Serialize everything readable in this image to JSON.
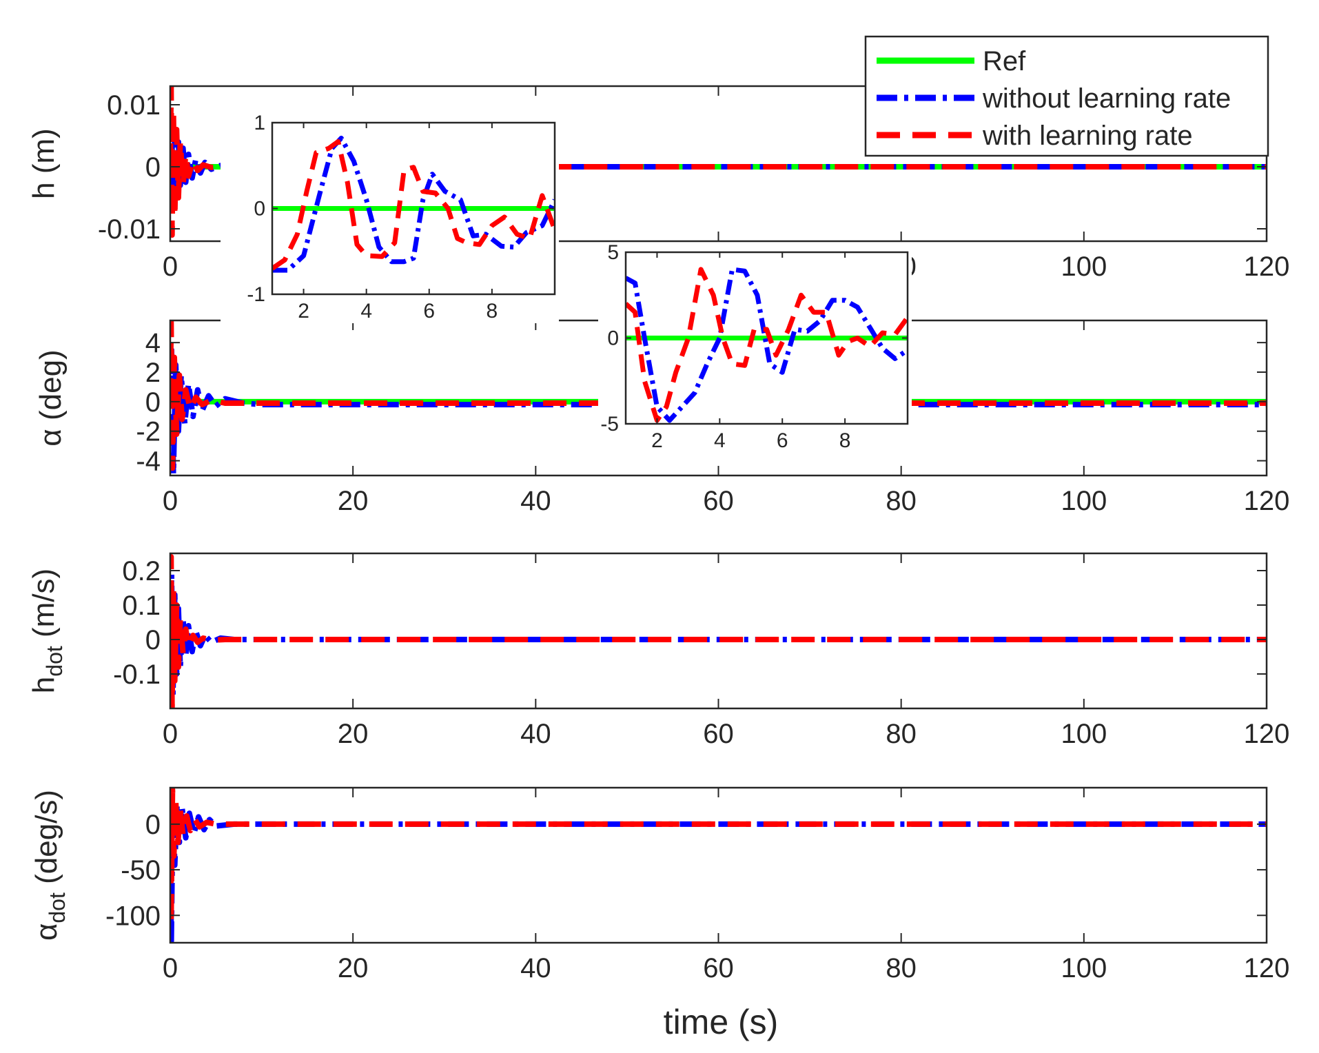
{
  "figure": {
    "xlabel": "time (s)",
    "legend_position": "top-right",
    "legend": [
      {
        "label": "Ref",
        "color": "#00ff00",
        "style": "solid"
      },
      {
        "label": "without learning rate",
        "color": "#0000ff",
        "style": "dashdot"
      },
      {
        "label": "with learning rate",
        "color": "#ff0000",
        "style": "dashed"
      }
    ]
  },
  "chart_data": [
    {
      "type": "line",
      "ylabel": "h (m)",
      "xlim": [
        0,
        120
      ],
      "ylim": [
        -0.012,
        0.013
      ],
      "xticks": [
        0,
        20,
        40,
        60,
        80,
        100,
        120
      ],
      "yticks": [
        -0.01,
        0,
        0.01
      ],
      "ytick_labels": [
        "-0.01",
        "0",
        "0.01"
      ],
      "series": [
        {
          "name": "Ref",
          "color": "#00ff00",
          "style": "solid",
          "x": [
            0,
            120
          ],
          "y": [
            0,
            0
          ]
        },
        {
          "name": "without learning rate",
          "color": "#0000ff",
          "style": "dashdot",
          "x": [
            0,
            0.15,
            0.3,
            0.5,
            0.7,
            0.9,
            1.1,
            1.4,
            1.7,
            2.0,
            2.4,
            2.8,
            3.3,
            3.8,
            4.5,
            5.5,
            7,
            10,
            120
          ],
          "y": [
            0,
            0.008,
            -0.006,
            0.005,
            -0.004,
            0.004,
            -0.003,
            0.003,
            -0.0025,
            0.002,
            -0.0018,
            0.0012,
            -0.001,
            0.0007,
            -0.0004,
            0.0002,
            -0.0001,
            0,
            0
          ]
        },
        {
          "name": "with learning rate",
          "color": "#ff0000",
          "style": "dashed",
          "x": [
            0,
            0.1,
            0.2,
            0.35,
            0.5,
            0.7,
            0.9,
            1.1,
            1.4,
            1.7,
            2.0,
            2.5,
            3.0,
            3.6,
            4.5,
            6,
            120
          ],
          "y": [
            0,
            0.013,
            -0.011,
            0.009,
            -0.008,
            0.006,
            -0.005,
            0.004,
            -0.003,
            0.002,
            -0.0015,
            0.001,
            -0.0006,
            0.0003,
            -0.0001,
            0,
            0
          ]
        }
      ],
      "inset": {
        "xlim": [
          1,
          10
        ],
        "ylim": [
          -1,
          1
        ],
        "xticks": [
          2,
          4,
          6,
          8
        ],
        "yticks": [
          -1,
          0,
          1
        ],
        "series": [
          {
            "name": "Ref",
            "color": "#00ff00",
            "style": "solid",
            "x": [
              1,
              10
            ],
            "y": [
              0,
              0
            ]
          },
          {
            "name": "without learning rate",
            "color": "#0000ff",
            "style": "dashdot",
            "x": [
              1,
              1.5,
              2.0,
              2.5,
              2.9,
              3.2,
              3.6,
              4.0,
              4.4,
              4.8,
              5.2,
              5.5,
              5.8,
              6.1,
              6.5,
              7.0,
              7.4,
              7.8,
              8.3,
              8.7,
              9.1,
              9.6,
              10
            ],
            "y": [
              -0.72,
              -0.72,
              -0.55,
              0.15,
              0.7,
              0.82,
              0.55,
              0.1,
              -0.45,
              -0.62,
              -0.62,
              -0.58,
              0.1,
              0.4,
              0.2,
              0.1,
              -0.32,
              -0.3,
              -0.44,
              -0.45,
              -0.28,
              -0.2,
              0.1
            ]
          },
          {
            "name": "with learning rate",
            "color": "#ff0000",
            "style": "dashed",
            "x": [
              1,
              1.4,
              1.8,
              2.1,
              2.4,
              2.8,
              3.1,
              3.4,
              3.7,
              4.0,
              4.5,
              4.9,
              5.2,
              5.5,
              5.8,
              6.2,
              6.6,
              6.9,
              7.2,
              7.6,
              8.0,
              8.4,
              8.8,
              9.2,
              9.6,
              10
            ],
            "y": [
              -0.7,
              -0.6,
              -0.3,
              0.2,
              0.65,
              0.7,
              0.78,
              0.3,
              -0.42,
              -0.55,
              -0.56,
              -0.4,
              0.45,
              0.48,
              0.2,
              0.18,
              0.0,
              -0.35,
              -0.4,
              -0.42,
              -0.2,
              -0.1,
              -0.3,
              -0.35,
              0.15,
              -0.25
            ]
          }
        ]
      }
    },
    {
      "type": "line",
      "ylabel": "α (deg)",
      "xlim": [
        0,
        120
      ],
      "ylim": [
        -5,
        5.5
      ],
      "xticks": [
        0,
        20,
        40,
        60,
        80,
        100,
        120
      ],
      "yticks": [
        -4,
        -2,
        0,
        2,
        4
      ],
      "ytick_labels": [
        "-4",
        "-2",
        "0",
        "2",
        "4"
      ],
      "series": [
        {
          "name": "Ref",
          "color": "#00ff00",
          "style": "solid",
          "x": [
            0,
            120
          ],
          "y": [
            0,
            0
          ]
        },
        {
          "name": "without learning rate",
          "color": "#0000ff",
          "style": "dashdot",
          "x": [
            0,
            0.15,
            0.35,
            0.6,
            0.9,
            1.2,
            1.6,
            2.0,
            2.5,
            3.0,
            3.5,
            4.2,
            5,
            6,
            8,
            10,
            120
          ],
          "y": [
            0,
            3.5,
            -4.9,
            2.5,
            -2.0,
            1.8,
            -1.5,
            1.2,
            -1.0,
            0.8,
            -0.6,
            0.4,
            -0.3,
            0.2,
            -0.1,
            -0.2,
            -0.2
          ]
        },
        {
          "name": "with learning rate",
          "color": "#ff0000",
          "style": "dashed",
          "x": [
            0,
            0.1,
            0.25,
            0.45,
            0.7,
            1.0,
            1.3,
            1.7,
            2.2,
            2.8,
            3.5,
            4.5,
            6,
            120
          ],
          "y": [
            0,
            5.4,
            -4.5,
            3.0,
            -2.2,
            1.8,
            -1.2,
            0.8,
            -0.5,
            0.3,
            -0.2,
            0.1,
            -0.1,
            -0.1
          ]
        }
      ],
      "inset": {
        "xlim": [
          1,
          10
        ],
        "ylim": [
          -5,
          5
        ],
        "xticks": [
          2,
          4,
          6,
          8
        ],
        "yticks": [
          -5,
          0,
          5
        ],
        "series": [
          {
            "name": "Ref",
            "color": "#00ff00",
            "style": "solid",
            "x": [
              1,
              10
            ],
            "y": [
              0,
              0
            ]
          },
          {
            "name": "without learning rate",
            "color": "#0000ff",
            "style": "dashdot",
            "x": [
              1,
              1.3,
              1.6,
              2.0,
              2.4,
              2.8,
              3.2,
              3.6,
              4.0,
              4.4,
              4.8,
              5.2,
              5.6,
              6.0,
              6.4,
              6.8,
              7.2,
              7.6,
              8.0,
              8.4,
              8.8,
              9.2,
              9.6,
              10
            ],
            "y": [
              3.5,
              3.2,
              0.0,
              -4.0,
              -4.8,
              -4.0,
              -3.2,
              -1.5,
              0.0,
              4.0,
              3.9,
              2.5,
              -1.5,
              -2.0,
              0.5,
              0.4,
              1.0,
              2.2,
              2.2,
              1.8,
              0.6,
              -0.6,
              -1.2,
              -0.7
            ]
          },
          {
            "name": "with learning rate",
            "color": "#ff0000",
            "style": "dashed",
            "x": [
              1,
              1.3,
              1.6,
              2.0,
              2.3,
              2.6,
              3.0,
              3.4,
              3.8,
              4.1,
              4.4,
              4.8,
              5.1,
              5.5,
              5.8,
              6.2,
              6.6,
              7.0,
              7.4,
              7.8,
              8.1,
              8.4,
              8.8,
              9.2,
              9.6,
              10
            ],
            "y": [
              2.0,
              1.5,
              -2.5,
              -4.8,
              -4.0,
              -2.0,
              0.0,
              4.0,
              2.5,
              0.0,
              -1.5,
              -1.6,
              0.5,
              0.5,
              -1.0,
              0.5,
              2.5,
              1.5,
              1.5,
              -1.0,
              -0.2,
              0.0,
              -0.5,
              0.3,
              0.2,
              1.2
            ]
          }
        ]
      }
    },
    {
      "type": "line",
      "ylabel": "h_dot (m/s)",
      "xlim": [
        0,
        120
      ],
      "ylim": [
        -0.2,
        0.25
      ],
      "xticks": [
        0,
        20,
        40,
        60,
        80,
        100,
        120
      ],
      "yticks": [
        -0.1,
        0,
        0.1,
        0.2
      ],
      "ytick_labels": [
        "-0.1",
        "0",
        "0.1",
        "0.2"
      ],
      "series": [
        {
          "name": "without learning rate",
          "color": "#0000ff",
          "style": "dashdot",
          "x": [
            0,
            0.15,
            0.3,
            0.5,
            0.7,
            0.9,
            1.1,
            1.4,
            1.7,
            2.0,
            2.4,
            2.8,
            3.3,
            3.8,
            4.5,
            5.5,
            7,
            120
          ],
          "y": [
            0,
            0.19,
            -0.16,
            0.13,
            -0.1,
            0.09,
            -0.08,
            0.06,
            -0.05,
            0.04,
            -0.035,
            0.025,
            -0.018,
            0.012,
            -0.008,
            0.004,
            0,
            0
          ]
        },
        {
          "name": "with learning rate",
          "color": "#ff0000",
          "style": "dashed",
          "x": [
            0,
            0.1,
            0.2,
            0.35,
            0.5,
            0.7,
            0.9,
            1.1,
            1.4,
            1.7,
            2.0,
            2.5,
            3.0,
            3.6,
            4.5,
            6,
            120
          ],
          "y": [
            0,
            0.24,
            -0.2,
            0.15,
            -0.12,
            0.1,
            -0.08,
            0.06,
            -0.04,
            0.03,
            -0.02,
            0.012,
            -0.008,
            0.004,
            -0.002,
            0,
            0
          ]
        }
      ]
    },
    {
      "type": "line",
      "ylabel": "α_dot (deg/s)",
      "xlim": [
        0,
        120
      ],
      "ylim": [
        -130,
        40
      ],
      "xticks": [
        0,
        20,
        40,
        60,
        80,
        100,
        120
      ],
      "yticks": [
        -100,
        -50,
        0
      ],
      "ytick_labels": [
        "-100",
        "-50",
        "0"
      ],
      "series": [
        {
          "name": "without learning rate",
          "color": "#0000ff",
          "style": "dashdot",
          "x": [
            0,
            0.12,
            0.3,
            0.5,
            0.75,
            1.0,
            1.3,
            1.7,
            2.1,
            2.6,
            3.1,
            3.7,
            4.3,
            5,
            7,
            120
          ],
          "y": [
            0,
            -128,
            25,
            -45,
            20,
            -20,
            18,
            -15,
            12,
            -10,
            8,
            -6,
            5,
            -2,
            0,
            0
          ]
        },
        {
          "name": "with learning rate",
          "color": "#ff0000",
          "style": "dashed",
          "x": [
            0,
            0.1,
            0.25,
            0.4,
            0.6,
            0.85,
            1.1,
            1.4,
            1.8,
            2.2,
            2.7,
            3.2,
            4.0,
            5,
            120
          ],
          "y": [
            0,
            -110,
            38,
            -35,
            25,
            -20,
            15,
            -12,
            9,
            -7,
            5,
            -3,
            2,
            0,
            0
          ]
        }
      ]
    }
  ]
}
